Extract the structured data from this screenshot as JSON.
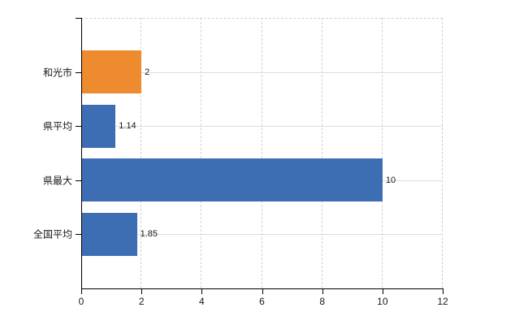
{
  "chart_data": {
    "type": "bar",
    "orientation": "horizontal",
    "title": "",
    "xlabel": "",
    "ylabel": "",
    "categories": [
      "和光市",
      "県平均",
      "県最大",
      "全国平均"
    ],
    "values": [
      2,
      1.14,
      10,
      1.85
    ],
    "value_labels": [
      "2",
      "1.14",
      "10",
      "1.85"
    ],
    "bar_colors": [
      "#EE8B2E",
      "#3D6EB3",
      "#3D6EB3",
      "#3D6EB3"
    ],
    "xlim": [
      0,
      12
    ],
    "xticks": [
      0,
      2,
      4,
      6,
      8,
      10,
      12
    ],
    "xtick_labels": [
      "0",
      "2",
      "4",
      "6",
      "8",
      "10",
      "12"
    ],
    "legend": "none",
    "grid": {
      "vertical": "dashed",
      "horizontal": "solid"
    }
  },
  "colors": {
    "background": "#ffffff",
    "axis": "#000000",
    "grid_vertical": "#d2d2d7",
    "grid_horizontal": "#d9ded9",
    "text": "#1a1a1a",
    "bar_highlight": "#EE8B2E",
    "bar_default": "#3D6EB3"
  }
}
